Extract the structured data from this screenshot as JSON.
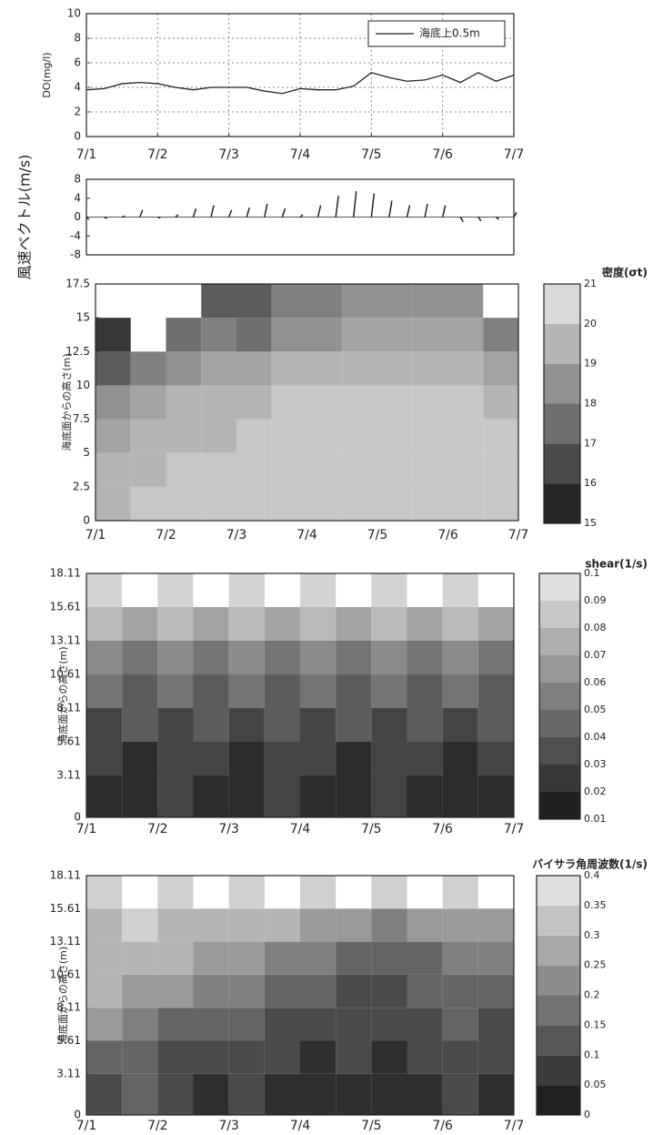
{
  "chart_data": [
    {
      "type": "line",
      "y_label": "DO(mg/l)",
      "x": [
        1,
        1.25,
        1.5,
        1.75,
        2,
        2.25,
        2.5,
        2.75,
        3,
        3.25,
        3.5,
        3.75,
        4,
        4.25,
        4.5,
        4.75,
        5,
        5.25,
        5.5,
        5.75,
        6,
        6.25,
        6.5,
        6.75,
        7
      ],
      "series": [
        {
          "name": "海底上0.5m",
          "color": "#222222",
          "values": [
            3.8,
            3.9,
            4.3,
            4.4,
            4.3,
            4.0,
            3.8,
            4.0,
            4.0,
            4.0,
            3.7,
            3.5,
            3.9,
            3.8,
            3.8,
            4.1,
            5.2,
            4.8,
            4.5,
            4.6,
            5.0,
            4.4,
            5.2,
            4.5,
            5.0
          ]
        }
      ],
      "xlim": [
        1,
        7
      ],
      "xticks": [
        {
          "value": 1,
          "label": "7/1"
        },
        {
          "value": 2,
          "label": "7/2"
        },
        {
          "value": 3,
          "label": "7/3"
        },
        {
          "value": 4,
          "label": "7/4"
        },
        {
          "value": 5,
          "label": "7/5"
        },
        {
          "value": 6,
          "label": "7/6"
        },
        {
          "value": 7,
          "label": "7/7"
        }
      ],
      "ylim": [
        0,
        10
      ],
      "yticks": [
        0,
        2,
        4,
        6,
        8,
        10
      ],
      "grid": true
    },
    {
      "type": "vector",
      "y_label": "風速ベクトル(m/s)",
      "x": [
        1,
        1.25,
        1.5,
        1.75,
        2,
        2.25,
        2.5,
        2.75,
        3,
        3.25,
        3.5,
        3.75,
        4,
        4.25,
        4.5,
        4.75,
        5,
        5.25,
        5.5,
        5.75,
        6,
        6.25,
        6.5,
        6.75,
        7
      ],
      "values": [
        -0.5,
        -0.3,
        0.2,
        1.5,
        -0.2,
        0.5,
        1.8,
        2.5,
        1.5,
        2.0,
        2.8,
        1.8,
        0.5,
        2.5,
        4.5,
        5.5,
        5.0,
        3.5,
        2.5,
        2.8,
        2.5,
        -1.0,
        -0.8,
        -0.5,
        1.0
      ],
      "color": "#222222",
      "xlim": [
        1,
        7
      ],
      "ylim": [
        -8,
        8
      ],
      "yticks": [
        -8,
        -4,
        0,
        4,
        8
      ]
    },
    {
      "type": "heatmap",
      "y_label": "海底面からの高さ(m)",
      "colorbar_label": "密度(σt)",
      "x_edges": [
        1,
        1.5,
        2,
        2.5,
        3,
        3.5,
        4,
        4.5,
        5,
        5.5,
        6,
        6.5,
        7
      ],
      "y_edges": [
        0,
        2.5,
        5,
        7.5,
        10,
        12.5,
        15,
        17.5
      ],
      "z": [
        [
          19.5,
          20,
          20,
          20,
          20,
          20,
          20,
          20,
          20,
          20,
          20,
          20
        ],
        [
          19.5,
          19.5,
          20,
          20,
          20,
          20,
          20,
          20,
          20,
          20,
          20,
          20
        ],
        [
          19,
          19.5,
          19.5,
          19.5,
          20,
          20,
          20,
          20,
          20,
          20,
          20,
          20
        ],
        [
          18.5,
          19,
          19.5,
          19.5,
          19.5,
          20,
          20,
          20,
          20,
          20,
          20,
          19.5
        ],
        [
          17,
          18,
          18.5,
          19,
          19,
          19.5,
          19.5,
          19.5,
          19.5,
          19.5,
          19.5,
          19
        ],
        [
          16,
          null,
          17.5,
          18,
          17.5,
          18.5,
          18.5,
          19,
          19,
          19,
          19,
          18
        ],
        [
          null,
          null,
          null,
          17,
          17,
          18,
          18,
          18.5,
          18.5,
          18.5,
          18.5,
          null
        ]
      ],
      "xlim": [
        1,
        7
      ],
      "xticks": [
        {
          "value": 1,
          "label": "7/1"
        },
        {
          "value": 2,
          "label": "7/2"
        },
        {
          "value": 3,
          "label": "7/3"
        },
        {
          "value": 4,
          "label": "7/4"
        },
        {
          "value": 5,
          "label": "7/5"
        },
        {
          "value": 6,
          "label": "7/6"
        },
        {
          "value": 7,
          "label": "7/7"
        }
      ],
      "ylim": [
        0,
        17.5
      ],
      "yticks": [
        0,
        2.5,
        5,
        7.5,
        10,
        12.5,
        15,
        17.5
      ],
      "clim": [
        15,
        21
      ],
      "cticks": [
        15,
        16,
        17,
        18,
        19,
        20,
        21
      ]
    },
    {
      "type": "heatmap",
      "y_label": "海底面からの高さ(m)",
      "colorbar_label": "shear(1/s)",
      "x_edges": [
        1,
        1.5,
        2,
        2.5,
        3,
        3.5,
        4,
        4.5,
        5,
        5.5,
        6,
        6.5,
        7
      ],
      "y_edges": [
        0,
        3.11,
        5.61,
        8.11,
        10.61,
        13.11,
        15.61,
        18.11
      ],
      "z": [
        [
          0.02,
          0.02,
          0.03,
          0.02,
          0.02,
          0.03,
          0.02,
          0.02,
          0.03,
          0.02,
          0.02,
          0.02
        ],
        [
          0.03,
          0.02,
          0.03,
          0.03,
          0.02,
          0.03,
          0.03,
          0.02,
          0.03,
          0.03,
          0.02,
          0.03
        ],
        [
          0.03,
          0.04,
          0.03,
          0.04,
          0.03,
          0.04,
          0.03,
          0.04,
          0.03,
          0.04,
          0.03,
          0.04
        ],
        [
          0.05,
          0.04,
          0.05,
          0.04,
          0.05,
          0.04,
          0.05,
          0.04,
          0.05,
          0.04,
          0.05,
          0.04
        ],
        [
          0.06,
          0.05,
          0.06,
          0.05,
          0.06,
          0.05,
          0.06,
          0.05,
          0.06,
          0.05,
          0.06,
          0.05
        ],
        [
          0.08,
          0.07,
          0.08,
          0.07,
          0.08,
          0.07,
          0.08,
          0.07,
          0.08,
          0.07,
          0.08,
          0.07
        ],
        [
          0.09,
          null,
          0.09,
          null,
          0.09,
          null,
          0.09,
          null,
          0.09,
          null,
          0.09,
          null
        ]
      ],
      "xlim": [
        1,
        7
      ],
      "xticks": [
        {
          "value": 1,
          "label": "7/1"
        },
        {
          "value": 2,
          "label": "7/2"
        },
        {
          "value": 3,
          "label": "7/3"
        },
        {
          "value": 4,
          "label": "7/4"
        },
        {
          "value": 5,
          "label": "7/5"
        },
        {
          "value": 6,
          "label": "7/6"
        },
        {
          "value": 7,
          "label": "7/7"
        }
      ],
      "ylim": [
        0,
        18.11
      ],
      "yticks": [
        0,
        3.11,
        5.61,
        8.11,
        10.61,
        13.11,
        15.61,
        18.11
      ],
      "clim": [
        0.01,
        0.1
      ],
      "cticks": [
        0.01,
        0.02,
        0.03,
        0.04,
        0.05,
        0.06,
        0.07,
        0.08,
        0.09,
        0.1
      ]
    },
    {
      "type": "heatmap",
      "y_label": "海底面からの高さ(m)",
      "colorbar_label": "バイサラ角周波数(1/s)",
      "x_edges": [
        1,
        1.5,
        2,
        2.5,
        3,
        3.5,
        4,
        4.5,
        5,
        5.5,
        6,
        6.5,
        7
      ],
      "y_edges": [
        0,
        3.11,
        5.61,
        8.11,
        10.61,
        13.11,
        15.61,
        18.11
      ],
      "z": [
        [
          0.1,
          0.15,
          0.1,
          0.05,
          0.1,
          0.05,
          0.05,
          0.05,
          0.05,
          0.05,
          0.1,
          0.05
        ],
        [
          0.15,
          0.15,
          0.1,
          0.1,
          0.1,
          0.1,
          0.05,
          0.1,
          0.05,
          0.1,
          0.1,
          0.1
        ],
        [
          0.25,
          0.2,
          0.15,
          0.15,
          0.15,
          0.1,
          0.1,
          0.1,
          0.1,
          0.1,
          0.15,
          0.1
        ],
        [
          0.3,
          0.25,
          0.25,
          0.2,
          0.2,
          0.15,
          0.15,
          0.1,
          0.1,
          0.15,
          0.15,
          0.15
        ],
        [
          0.3,
          0.3,
          0.3,
          0.25,
          0.25,
          0.2,
          0.2,
          0.15,
          0.15,
          0.15,
          0.2,
          0.2
        ],
        [
          0.3,
          0.35,
          0.3,
          0.3,
          0.3,
          0.3,
          0.25,
          0.25,
          0.2,
          0.25,
          0.25,
          0.25
        ],
        [
          0.35,
          null,
          0.35,
          null,
          0.35,
          null,
          0.35,
          null,
          0.35,
          null,
          0.35,
          null
        ]
      ],
      "xlim": [
        1,
        7
      ],
      "xticks": [
        {
          "value": 1,
          "label": "7/1"
        },
        {
          "value": 2,
          "label": "7/2"
        },
        {
          "value": 3,
          "label": "7/3"
        },
        {
          "value": 4,
          "label": "7/4"
        },
        {
          "value": 5,
          "label": "7/5"
        },
        {
          "value": 6,
          "label": "7/6"
        },
        {
          "value": 7,
          "label": "7/7"
        }
      ],
      "ylim": [
        0,
        18.11
      ],
      "yticks": [
        0,
        3.11,
        5.61,
        8.11,
        10.61,
        13.11,
        15.61,
        18.11
      ],
      "clim": [
        0,
        0.4
      ],
      "cticks": [
        0,
        0.05,
        0.1,
        0.15,
        0.2,
        0.25,
        0.3,
        0.35,
        0.4
      ]
    }
  ]
}
